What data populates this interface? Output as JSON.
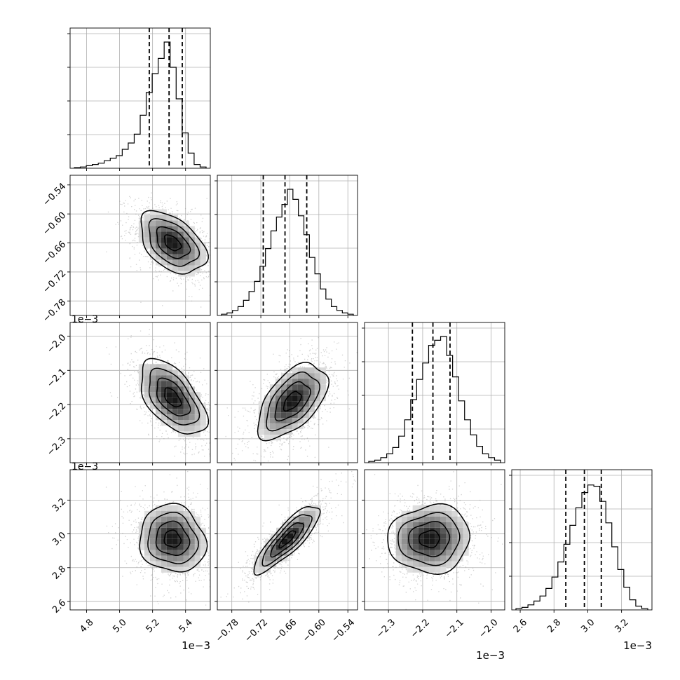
{
  "chart_data": {
    "type": "corner",
    "grid": true,
    "quantiles_shown": [
      0.16,
      0.5,
      0.84
    ],
    "exponent_label": "1e−3",
    "params": [
      {
        "range": [
          4.7,
          5.55
        ],
        "ticks": [
          4.8,
          5.0,
          5.2,
          5.4
        ],
        "tick_labels": [
          "4.8",
          "5.0",
          "5.2",
          "5.4"
        ],
        "quantiles": [
          5.18,
          5.3,
          5.38
        ]
      },
      {
        "range": [
          -0.81,
          -0.52
        ],
        "ticks": [
          -0.78,
          -0.72,
          -0.66,
          -0.6,
          -0.54
        ],
        "tick_labels": [
          "−0.78",
          "−0.72",
          "−0.66",
          "−0.60",
          "−0.54"
        ],
        "quantiles": [
          -0.715,
          -0.67,
          -0.625
        ]
      },
      {
        "range": [
          -2.37,
          -1.96
        ],
        "ticks": [
          -2.3,
          -2.2,
          -2.1,
          -2.0
        ],
        "tick_labels": [
          "−2.3",
          "−2.2",
          "−2.1",
          "−2.0"
        ],
        "quantiles": [
          -2.23,
          -2.17,
          -2.12
        ]
      },
      {
        "range": [
          2.55,
          3.38
        ],
        "ticks": [
          2.6,
          2.8,
          3.0,
          3.2
        ],
        "tick_labels": [
          "2.6",
          "2.8",
          "3.0",
          "3.2"
        ],
        "quantiles": [
          2.87,
          2.98,
          3.08
        ]
      }
    ],
    "histograms": [
      [
        0.005,
        0.01,
        0.02,
        0.03,
        0.04,
        0.06,
        0.08,
        0.1,
        0.15,
        0.2,
        0.27,
        0.42,
        0.6,
        0.75,
        0.87,
        1.0,
        0.8,
        0.55,
        0.28,
        0.12,
        0.03,
        0.01
      ],
      [
        0.01,
        0.02,
        0.04,
        0.07,
        0.12,
        0.19,
        0.27,
        0.39,
        0.53,
        0.67,
        0.78,
        0.88,
        1.0,
        0.92,
        0.79,
        0.64,
        0.46,
        0.33,
        0.21,
        0.13,
        0.07,
        0.04,
        0.02,
        0.01
      ],
      [
        0.01,
        0.02,
        0.04,
        0.07,
        0.12,
        0.21,
        0.34,
        0.5,
        0.66,
        0.79,
        0.93,
        0.97,
        1.0,
        0.85,
        0.68,
        0.49,
        0.34,
        0.22,
        0.13,
        0.07,
        0.04,
        0.02
      ],
      [
        0.01,
        0.02,
        0.04,
        0.07,
        0.11,
        0.17,
        0.26,
        0.38,
        0.52,
        0.67,
        0.81,
        0.93,
        0.99,
        0.98,
        0.86,
        0.69,
        0.5,
        0.32,
        0.18,
        0.08,
        0.03,
        0.01
      ]
    ],
    "joint": [
      {
        "row": 1,
        "col": 0,
        "center": [
          5.32,
          -0.66
        ],
        "sd": [
          0.1,
          0.032
        ],
        "rho": -0.45
      },
      {
        "row": 2,
        "col": 0,
        "center": [
          5.32,
          -2.18
        ],
        "sd": [
          0.1,
          0.055
        ],
        "rho": -0.55
      },
      {
        "row": 2,
        "col": 1,
        "center": [
          -0.655,
          -2.19
        ],
        "sd": [
          0.036,
          0.055
        ],
        "rho": 0.55
      },
      {
        "row": 3,
        "col": 0,
        "center": [
          5.32,
          2.97
        ],
        "sd": [
          0.1,
          0.1
        ],
        "rho": -0.1
      },
      {
        "row": 3,
        "col": 1,
        "center": [
          -0.665,
          2.97
        ],
        "sd": [
          0.034,
          0.1
        ],
        "rho": 0.85
      },
      {
        "row": 3,
        "col": 2,
        "center": [
          -2.18,
          2.97
        ],
        "sd": [
          0.06,
          0.1
        ],
        "rho": 0.05
      }
    ]
  }
}
